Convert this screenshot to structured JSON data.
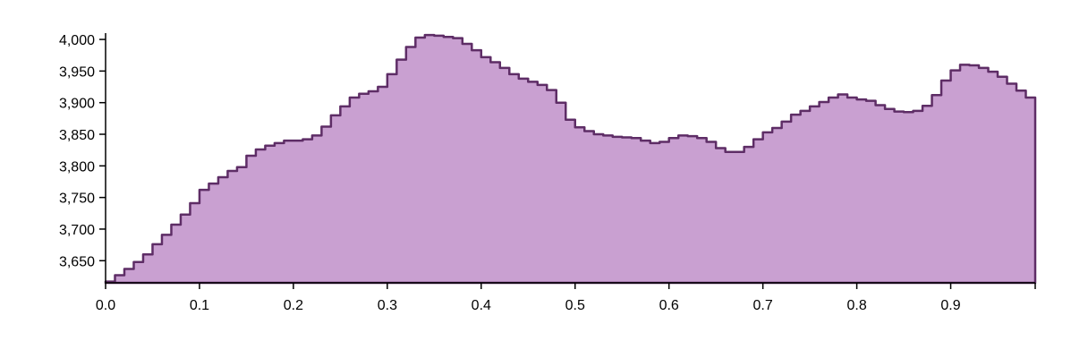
{
  "chart_data": {
    "type": "area",
    "title": "",
    "xlabel": "",
    "ylabel": "",
    "step": true,
    "xlim": [
      0.0,
      0.99
    ],
    "ylim": [
      3615,
      4010
    ],
    "x_ticks": [
      0.0,
      0.1,
      0.2,
      0.3,
      0.4,
      0.5,
      0.6,
      0.7,
      0.8,
      0.9
    ],
    "x_tick_labels": [
      "0.0",
      "0.1",
      "0.2",
      "0.3",
      "0.4",
      "0.5",
      "0.6",
      "0.7",
      "0.8",
      "0.9"
    ],
    "y_ticks": [
      3650,
      3700,
      3750,
      3800,
      3850,
      3900,
      3950,
      4000
    ],
    "y_tick_labels": [
      "3,650",
      "3,700",
      "3,750",
      "3,800",
      "3,850",
      "3,900",
      "3,950",
      "4,000"
    ],
    "colors": {
      "fill": "#c9a0d1",
      "stroke": "#5e2d66",
      "axis": "#000000"
    },
    "grid": false,
    "x": [
      0.0,
      0.01,
      0.02,
      0.03,
      0.04,
      0.05,
      0.06,
      0.07,
      0.08,
      0.09,
      0.1,
      0.11,
      0.12,
      0.13,
      0.14,
      0.15,
      0.16,
      0.17,
      0.18,
      0.19,
      0.2,
      0.21,
      0.22,
      0.23,
      0.24,
      0.25,
      0.26,
      0.27,
      0.28,
      0.29,
      0.3,
      0.31,
      0.32,
      0.33,
      0.34,
      0.35,
      0.36,
      0.37,
      0.38,
      0.39,
      0.4,
      0.41,
      0.42,
      0.43,
      0.44,
      0.45,
      0.46,
      0.47,
      0.48,
      0.49,
      0.5,
      0.51,
      0.52,
      0.53,
      0.54,
      0.55,
      0.56,
      0.57,
      0.58,
      0.59,
      0.6,
      0.61,
      0.62,
      0.63,
      0.64,
      0.65,
      0.66,
      0.67,
      0.68,
      0.69,
      0.7,
      0.71,
      0.72,
      0.73,
      0.74,
      0.75,
      0.76,
      0.77,
      0.78,
      0.79,
      0.8,
      0.81,
      0.82,
      0.83,
      0.84,
      0.85,
      0.86,
      0.87,
      0.88,
      0.89,
      0.9,
      0.91,
      0.92,
      0.93,
      0.94,
      0.95,
      0.96,
      0.97,
      0.98,
      0.99
    ],
    "values": [
      3617,
      3627,
      3637,
      3648,
      3660,
      3676,
      3691,
      3707,
      3723,
      3741,
      3762,
      3772,
      3782,
      3792,
      3798,
      3816,
      3826,
      3832,
      3836,
      3840,
      3840,
      3842,
      3848,
      3862,
      3880,
      3894,
      3908,
      3914,
      3918,
      3925,
      3945,
      3968,
      3988,
      4003,
      4007,
      4006,
      4004,
      4002,
      3993,
      3983,
      3972,
      3964,
      3955,
      3945,
      3938,
      3933,
      3928,
      3920,
      3900,
      3873,
      3861,
      3855,
      3850,
      3848,
      3846,
      3845,
      3844,
      3840,
      3836,
      3838,
      3844,
      3848,
      3847,
      3844,
      3838,
      3828,
      3822,
      3822,
      3830,
      3842,
      3853,
      3860,
      3870,
      3881,
      3887,
      3894,
      3901,
      3908,
      3913,
      3908,
      3905,
      3903,
      3896,
      3890,
      3886,
      3885,
      3887,
      3895,
      3912,
      3935,
      3951,
      3960,
      3959,
      3955,
      3949,
      3941,
      3930,
      3919,
      3908,
      3893
    ]
  }
}
